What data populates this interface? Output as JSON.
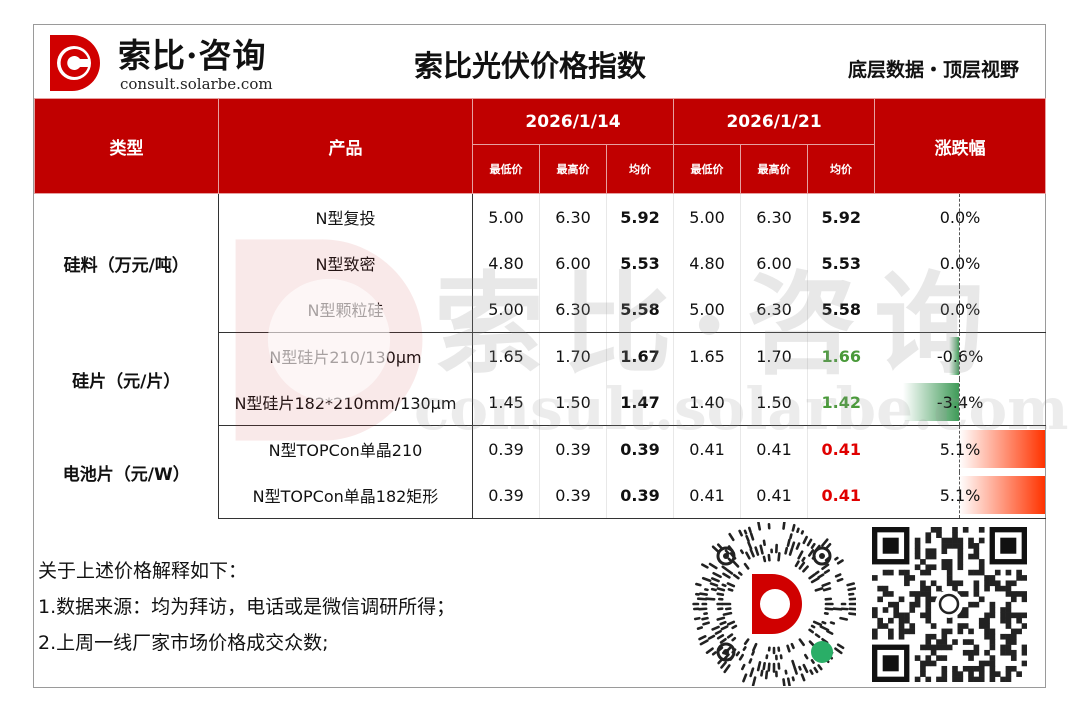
{
  "brand": {
    "name": "索比·咨询",
    "url": "consult.solarbe.com"
  },
  "title": "索比光伏价格指数",
  "slogan": "底层数据・顶层视野",
  "table": {
    "headers": {
      "type": "类型",
      "product": "产品",
      "date1": "2026/1/14",
      "date2": "2026/1/21",
      "change": "涨跌幅",
      "low": "最低价",
      "high": "最高价",
      "avg": "均价"
    },
    "groups": [
      {
        "category": "硅料（万元/吨）",
        "rows": [
          {
            "product": "N型复投",
            "d1_low": "5.00",
            "d1_high": "6.30",
            "d1_avg": "5.92",
            "d2_low": "5.00",
            "d2_high": "6.30",
            "d2_avg": "5.92",
            "change": "0.0%",
            "change_value": 0.0,
            "trend": "flat"
          },
          {
            "product": "N型致密",
            "d1_low": "4.80",
            "d1_high": "6.00",
            "d1_avg": "5.53",
            "d2_low": "4.80",
            "d2_high": "6.00",
            "d2_avg": "5.53",
            "change": "0.0%",
            "change_value": 0.0,
            "trend": "flat"
          },
          {
            "product": "N型颗粒硅",
            "d1_low": "5.00",
            "d1_high": "6.30",
            "d1_avg": "5.58",
            "d2_low": "5.00",
            "d2_high": "6.30",
            "d2_avg": "5.58",
            "change": "0.0%",
            "change_value": 0.0,
            "trend": "flat"
          }
        ]
      },
      {
        "category": "硅片（元/片）",
        "rows": [
          {
            "product": "N型硅片210/130μm",
            "d1_low": "1.65",
            "d1_high": "1.70",
            "d1_avg": "1.67",
            "d2_low": "1.65",
            "d2_high": "1.70",
            "d2_avg": "1.66",
            "change": "-0.6%",
            "change_value": -0.6,
            "trend": "down"
          },
          {
            "product": "N型硅片182*210mm/130μm",
            "d1_low": "1.45",
            "d1_high": "1.50",
            "d1_avg": "1.47",
            "d2_low": "1.40",
            "d2_high": "1.50",
            "d2_avg": "1.42",
            "change": "-3.4%",
            "change_value": -3.4,
            "trend": "down"
          }
        ]
      },
      {
        "category": "电池片（元/W）",
        "rows": [
          {
            "product": "N型TOPCon单晶210",
            "d1_low": "0.39",
            "d1_high": "0.39",
            "d1_avg": "0.39",
            "d2_low": "0.41",
            "d2_high": "0.41",
            "d2_avg": "0.41",
            "change": "5.1%",
            "change_value": 5.1,
            "trend": "up"
          },
          {
            "product": "N型TOPCon单晶182矩形",
            "d1_low": "0.39",
            "d1_high": "0.39",
            "d1_avg": "0.39",
            "d2_low": "0.41",
            "d2_high": "0.41",
            "d2_avg": "0.41",
            "change": "5.1%",
            "change_value": 5.1,
            "trend": "up"
          }
        ]
      }
    ]
  },
  "watermark": {
    "text": "索比·咨询",
    "url": "consult.solarbe.com"
  },
  "notes": {
    "heading": "关于上述价格解释如下：",
    "line1": "1.数据来源：均为拜访，电话或是微信调研所得；",
    "line2": "2.上周一线厂家市场价格成交众数;"
  },
  "colors": {
    "header_bg": "#c00000",
    "up": "#e00000",
    "down": "#4a9a3a"
  }
}
